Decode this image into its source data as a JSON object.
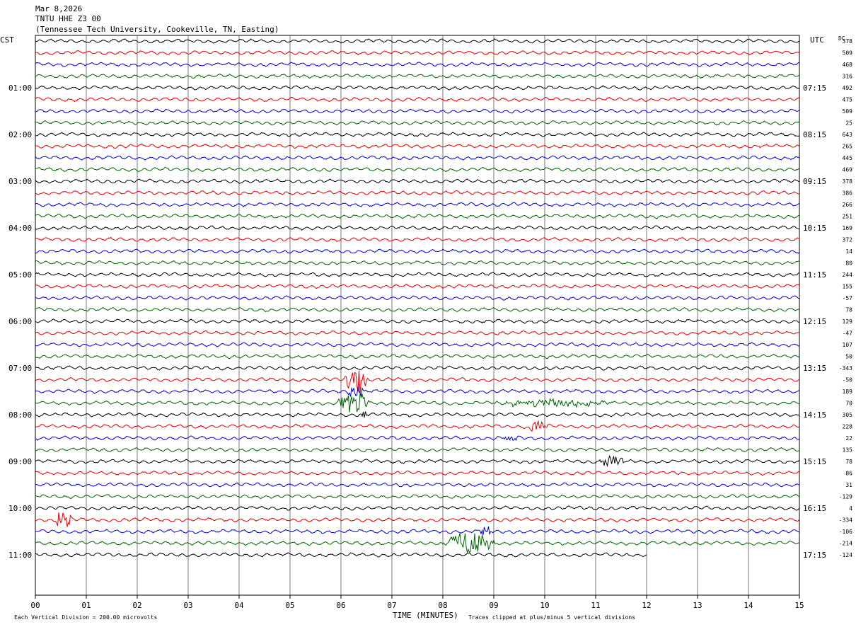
{
  "header": {
    "date": "Mar 8,2026",
    "station": "TNTU HHE Z3 00",
    "location": "(Tennessee Tech University, Cookeville, TN, Easting)"
  },
  "chart_data": {
    "type": "line",
    "left_zone_label": "CST",
    "right_zone_label": "UTC",
    "dc_header": "DC",
    "xlabel": "TIME (MINUTES)",
    "x_ticks": [
      "00",
      "01",
      "02",
      "03",
      "04",
      "05",
      "06",
      "07",
      "08",
      "09",
      "10",
      "11",
      "12",
      "13",
      "14",
      "15"
    ],
    "xlim": [
      0,
      15
    ],
    "trace_colors": [
      "#000000",
      "#e00000",
      "#0000d0",
      "#006400"
    ],
    "left_time_labels": [
      "01:00",
      "02:00",
      "03:00",
      "04:00",
      "05:00",
      "06:00",
      "07:00",
      "08:00",
      "09:00",
      "10:00",
      "11:00"
    ],
    "right_time_labels": [
      "07:15",
      "08:15",
      "09:15",
      "10:15",
      "11:15",
      "12:15",
      "13:15",
      "14:15",
      "15:15",
      "16:15",
      "17:15"
    ],
    "time_label_every_n_traces": 4,
    "time_label_first_trace_index": 4,
    "dc_offsets": [
      378,
      509,
      468,
      316,
      492,
      475,
      509,
      25,
      643,
      265,
      445,
      469,
      378,
      386,
      266,
      251,
      169,
      372,
      14,
      80,
      244,
      155,
      -57,
      78,
      129,
      -47,
      107,
      50,
      -343,
      -50,
      189,
      70,
      305,
      228,
      22,
      135,
      78,
      86,
      31,
      -129,
      4,
      -334,
      -106,
      -214,
      -124
    ],
    "last_trace_end_minute": 12.0,
    "events": [
      {
        "trace": 29,
        "start": 6.05,
        "end": 6.55,
        "amp": 2.0
      },
      {
        "trace": 30,
        "start": 6.1,
        "end": 6.5,
        "amp": 0.9
      },
      {
        "trace": 31,
        "start": 5.9,
        "end": 6.6,
        "amp": 1.6
      },
      {
        "trace": 31,
        "start": 8.85,
        "end": 11.5,
        "amp": 0.4
      },
      {
        "trace": 32,
        "start": 6.35,
        "end": 6.55,
        "amp": 0.6
      },
      {
        "trace": 33,
        "start": 9.6,
        "end": 10.1,
        "amp": 0.8
      },
      {
        "trace": 34,
        "start": 9.15,
        "end": 9.5,
        "amp": 0.5
      },
      {
        "trace": 36,
        "start": 11.05,
        "end": 11.6,
        "amp": 0.75
      },
      {
        "trace": 41,
        "start": 0.35,
        "end": 0.75,
        "amp": 1.3
      },
      {
        "trace": 42,
        "start": 8.7,
        "end": 9.0,
        "amp": 0.6
      },
      {
        "trace": 43,
        "start": 7.95,
        "end": 9.1,
        "amp": 1.4
      }
    ],
    "footer_scale": "Each Vertical Division =  200.00 microvolts",
    "footer_clip": "Traces clipped at plus/minus 5 vertical divisions"
  }
}
